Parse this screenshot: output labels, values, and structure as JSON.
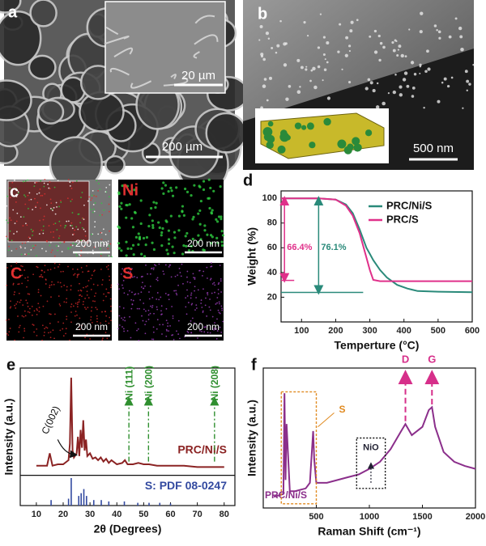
{
  "figure": {
    "a": {
      "label": "a",
      "inset_scale": "20 µm",
      "scale": "200 µm"
    },
    "b": {
      "label": "b",
      "scale": "500 nm"
    },
    "c": {
      "label": "c",
      "tiles": [
        {
          "scale": "200 nm"
        },
        {
          "label": "Ni",
          "scale": "200 nm"
        },
        {
          "label": "C",
          "scale": "200 nm"
        },
        {
          "label": "S",
          "scale": "200 nm"
        }
      ]
    }
  },
  "chart_data": [
    {
      "type": "line",
      "panel": "d",
      "xlabel": "Temperture (°C)",
      "ylabel": "Weight (%)",
      "xlim": [
        40,
        600
      ],
      "ylim": [
        0,
        106
      ],
      "xticks": [
        100,
        200,
        300,
        400,
        500,
        600
      ],
      "yticks": [
        20,
        40,
        60,
        80,
        100
      ],
      "series": [
        {
          "name": "PRC/Ni/S",
          "color": "#2a8a7a",
          "x": [
            40,
            100,
            150,
            200,
            230,
            250,
            270,
            290,
            300,
            310,
            330,
            350,
            380,
            410,
            440,
            500,
            600
          ],
          "values": [
            100,
            100,
            100,
            99,
            95,
            88,
            75,
            60,
            55,
            50,
            42,
            36,
            30,
            27,
            25,
            24.5,
            24
          ]
        },
        {
          "name": "PRC/S",
          "color": "#e0308a",
          "x": [
            40,
            100,
            150,
            200,
            230,
            250,
            270,
            290,
            300,
            310,
            330,
            350,
            380,
            410,
            440,
            500,
            600
          ],
          "values": [
            100,
            100,
            100,
            99,
            94,
            86,
            72,
            52,
            42,
            34,
            33,
            33,
            33,
            33,
            33,
            33,
            33
          ]
        }
      ],
      "annotations": [
        {
          "text": "66.4%",
          "x": 50,
          "y1": 33.6,
          "y2": 100,
          "color": "#e0308a"
        },
        {
          "text": "76.1%",
          "x": 150,
          "y1": 23.9,
          "y2": 100,
          "color": "#2a8a7a"
        }
      ]
    },
    {
      "type": "line",
      "panel": "e",
      "xlabel": "2θ (Degrees)",
      "ylabel": "Intensity (a.u.)",
      "xlim": [
        4,
        84
      ],
      "ylim": [
        0,
        100
      ],
      "xticks": [
        10,
        20,
        30,
        40,
        50,
        60,
        70,
        80
      ],
      "series": [
        {
          "name": "PRC/Ni/S",
          "color": "#8b2323",
          "x": [
            10,
            14,
            15,
            16,
            18,
            20,
            22,
            22.5,
            23,
            23.5,
            24,
            25,
            25.5,
            26,
            26.5,
            27,
            27.5,
            28,
            28.5,
            29,
            30,
            31,
            32,
            33,
            34,
            35,
            36,
            37,
            38,
            40,
            42,
            43,
            44,
            46,
            48,
            50,
            52,
            55,
            58,
            60,
            65,
            70,
            75,
            80
          ],
          "values": [
            29,
            29,
            38,
            29,
            30,
            30,
            33,
            45,
            93,
            40,
            35,
            38,
            50,
            36,
            55,
            42,
            62,
            40,
            48,
            36,
            38,
            34,
            35,
            33,
            35,
            32,
            34,
            31,
            33,
            30,
            31,
            33,
            30,
            30,
            31,
            30,
            30,
            29,
            29,
            29,
            29,
            28,
            28,
            28
          ]
        },
        {
          "name": "S: PDF 08-0247",
          "type": "stick",
          "color": "#334aa0",
          "x": [
            15.5,
            22,
            23,
            25.8,
            26.7,
            27.7,
            28.7,
            31.4,
            34.2,
            37,
            42.8,
            47.8,
            52,
            56,
            60
          ],
          "values": [
            4,
            5,
            20,
            7,
            9,
            12,
            7,
            4,
            4,
            3,
            3,
            2,
            2,
            2,
            1.5
          ]
        }
      ],
      "annotations": [
        {
          "text": "C(002)",
          "x": 24
        },
        {
          "text": "Ni (111)",
          "x": 44.5
        },
        {
          "text": "Ni (200)",
          "x": 51.8
        },
        {
          "text": "Ni (208)",
          "x": 76.4
        }
      ]
    },
    {
      "type": "line",
      "panel": "f",
      "xlabel": "Raman Shift (cm⁻¹)",
      "ylabel": "Intensity (a.u.)",
      "xlim": [
        0,
        2000
      ],
      "ylim": [
        0,
        100
      ],
      "xticks": [
        500,
        1000,
        1500,
        2000
      ],
      "series": [
        {
          "name": "PRC/Ni/S",
          "color": "#8b2f8b",
          "x": [
            100,
            150,
            190,
            200,
            210,
            220,
            250,
            300,
            400,
            440,
            470,
            480,
            500,
            600,
            700,
            800,
            900,
            1000,
            1100,
            1200,
            1300,
            1340,
            1400,
            1500,
            1560,
            1590,
            1620,
            1700,
            1800,
            1900,
            2000
          ],
          "values": [
            8,
            9,
            10,
            82,
            20,
            60,
            12,
            12,
            14,
            18,
            55,
            35,
            18,
            18,
            20,
            22,
            24,
            28,
            33,
            42,
            55,
            60,
            52,
            58,
            70,
            72,
            58,
            40,
            33,
            30,
            28
          ]
        }
      ],
      "annotations": [
        {
          "text": "S",
          "x": [
            170,
            500
          ]
        },
        {
          "text": "NiO",
          "x": [
            880,
            1150
          ]
        },
        {
          "text": "D",
          "x": 1340
        },
        {
          "text": "G",
          "x": 1590
        }
      ]
    }
  ]
}
